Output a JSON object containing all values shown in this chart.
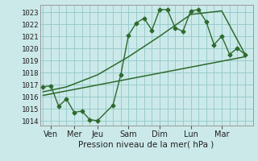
{
  "background_color": "#cce9e9",
  "grid_color": "#99cccc",
  "line_color": "#2d6a2d",
  "ylabel_values": [
    1014,
    1015,
    1016,
    1017,
    1018,
    1019,
    1020,
    1021,
    1022,
    1023
  ],
  "ylim": [
    1013.6,
    1023.6
  ],
  "xlim": [
    -0.2,
    13.5
  ],
  "xlabel": "Pression niveau de la mer( hPa )",
  "x_tick_labels": [
    "Ven",
    "Mer",
    "Jeu",
    "Sam",
    "Dim",
    "Lun",
    "Mar"
  ],
  "x_tick_positions": [
    0.5,
    2.0,
    3.5,
    5.5,
    7.5,
    9.5,
    11.5
  ],
  "series1_x": [
    0.0,
    0.5,
    1.0,
    1.5,
    2.0,
    2.5,
    3.0,
    3.5,
    4.5,
    5.0,
    5.5,
    6.0,
    6.5,
    7.0,
    7.5,
    8.0,
    8.5,
    9.0,
    9.5,
    10.0,
    10.5,
    11.0,
    11.5,
    12.0,
    12.5,
    13.0
  ],
  "series1_y": [
    1016.8,
    1016.9,
    1015.2,
    1015.8,
    1014.7,
    1014.8,
    1014.1,
    1014.0,
    1015.3,
    1017.8,
    1021.1,
    1022.1,
    1022.5,
    1021.5,
    1023.2,
    1023.2,
    1021.7,
    1021.4,
    1023.1,
    1023.2,
    1022.2,
    1020.3,
    1021.0,
    1019.5,
    1020.0,
    1019.5
  ],
  "series2_x": [
    0.0,
    1.5,
    3.5,
    5.5,
    7.5,
    9.5,
    11.5,
    13.0
  ],
  "series2_y": [
    1016.4,
    1016.8,
    1017.8,
    1019.3,
    1021.0,
    1022.8,
    1023.1,
    1019.5
  ],
  "series3_x": [
    0.0,
    13.0
  ],
  "series3_y": [
    1016.1,
    1019.3
  ],
  "marker_style": "D",
  "marker_size": 2.5
}
